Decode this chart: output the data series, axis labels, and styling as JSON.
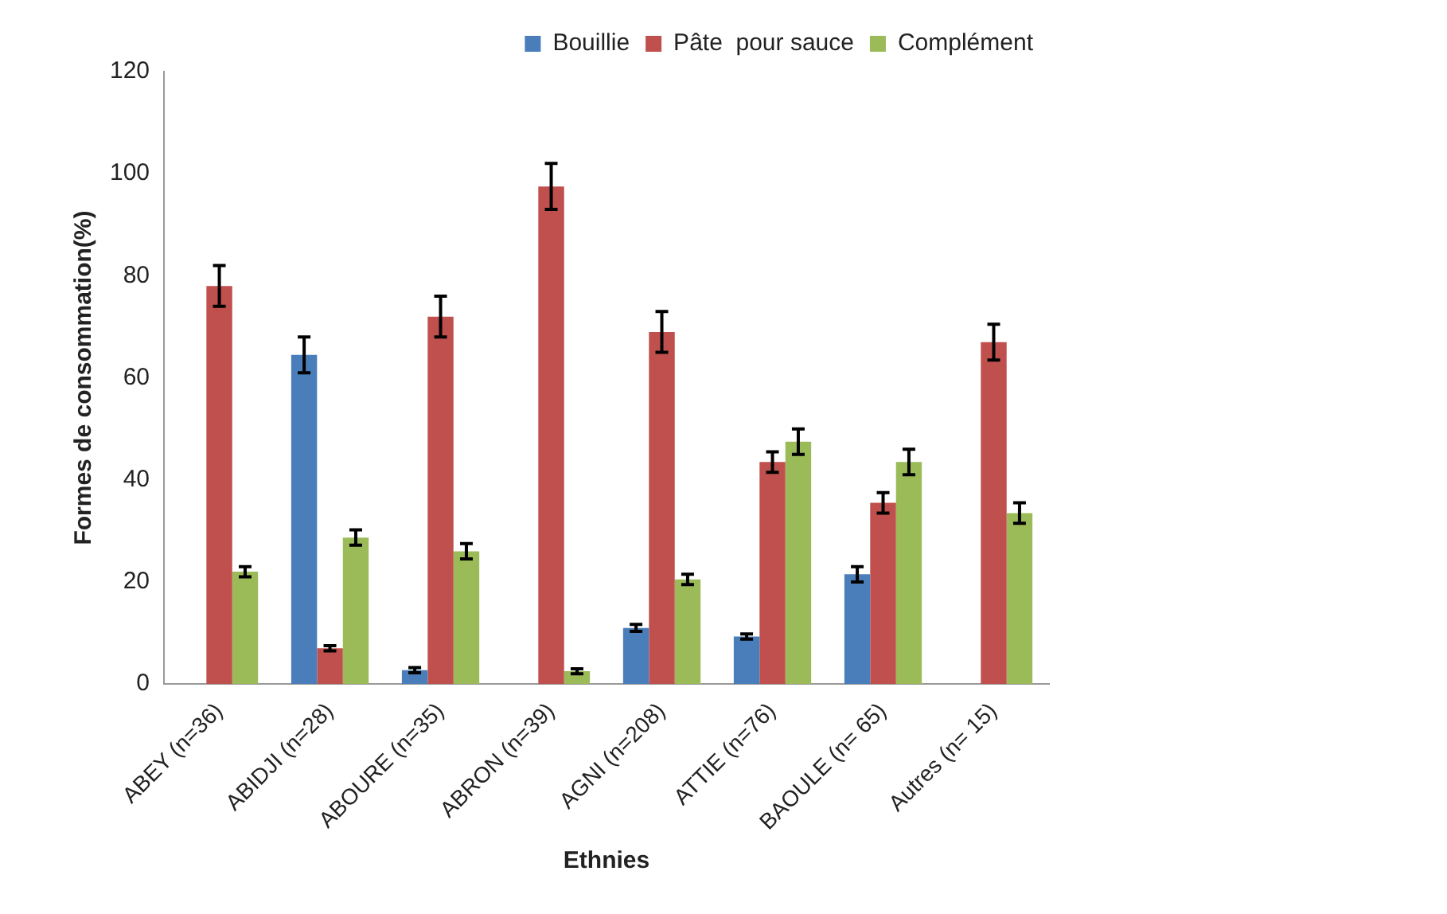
{
  "chart_data": {
    "type": "bar",
    "xlabel": "Ethnies",
    "ylabel": "Formes de consommation(%)",
    "categories": [
      "ABEY (n=36)",
      "ABIDJI (n=28)",
      "ABOURE (n=35)",
      "ABRON (n=39)",
      "AGNI (n=208)",
      "ATTIE (n=76)",
      "BAOULE (n= 65)",
      "Autres (n= 15)"
    ],
    "series": [
      {
        "name": "Bouillie",
        "color": "#4a7ebb",
        "values": [
          0,
          64.5,
          2.7,
          0,
          11,
          9.3,
          21.5,
          0
        ],
        "errors": [
          null,
          3.5,
          0.5,
          null,
          0.7,
          0.5,
          1.5,
          null
        ]
      },
      {
        "name": "Pâte  pour sauce",
        "color": "#c0504d",
        "values": [
          78,
          7,
          72,
          97.5,
          69,
          43.5,
          35.5,
          67
        ],
        "errors": [
          4,
          0.5,
          4,
          4.5,
          4,
          2,
          2,
          3.5
        ]
      },
      {
        "name": "Complément",
        "color": "#9bbb59",
        "values": [
          22,
          28.7,
          26,
          2.5,
          20.5,
          47.5,
          43.5,
          33.5
        ],
        "errors": [
          1,
          1.5,
          1.5,
          0.5,
          1,
          2.5,
          2.5,
          2
        ]
      }
    ],
    "ylim": [
      0,
      120
    ],
    "yticks": [
      0,
      20,
      40,
      60,
      80,
      100,
      120
    ],
    "grid": false,
    "legend": "top right"
  }
}
